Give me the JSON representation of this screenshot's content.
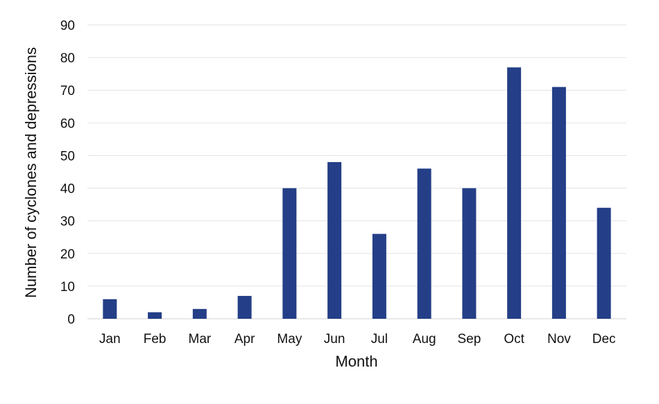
{
  "chart_data": {
    "type": "bar",
    "title": "",
    "xlabel": "Month",
    "ylabel": "Number of cyclones and depressions",
    "categories": [
      "Jan",
      "Feb",
      "Mar",
      "Apr",
      "May",
      "Jun",
      "Jul",
      "Aug",
      "Sep",
      "Oct",
      "Nov",
      "Dec"
    ],
    "values": [
      6,
      2,
      3,
      7,
      40,
      48,
      26,
      46,
      40,
      77,
      71,
      34
    ],
    "ylim": [
      0,
      90
    ],
    "yticks": [
      0,
      10,
      20,
      30,
      40,
      50,
      60,
      70,
      80,
      90
    ],
    "grid": true,
    "legend": "none",
    "bar_color": "#243f87"
  }
}
